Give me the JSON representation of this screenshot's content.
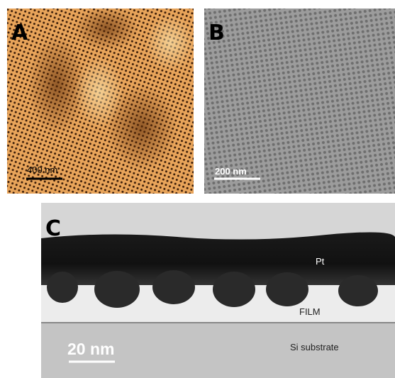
{
  "panels": [
    {
      "label": "A",
      "scale_bar": "400 nm"
    },
    {
      "label": "B",
      "scale_bar": "200 nm"
    },
    {
      "label": "C",
      "scale_bar": "20 nm",
      "layers": [
        "Pt",
        "FILM",
        "Si substrate"
      ]
    }
  ]
}
